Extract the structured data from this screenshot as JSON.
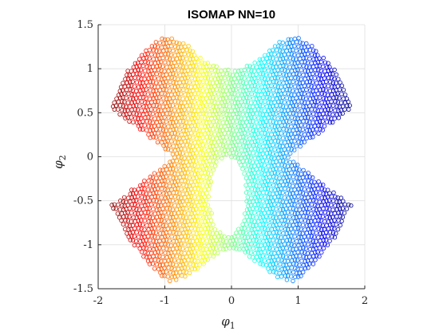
{
  "chart_data": {
    "type": "scatter",
    "title": "ISOMAP NN=10",
    "xlabel": "φ",
    "xlabel_sub": "1",
    "ylabel": "φ",
    "ylabel_sub": "2",
    "xlim": [
      -2,
      2
    ],
    "ylim": [
      -1.5,
      1.5
    ],
    "xticks": [
      -2,
      -1,
      0,
      1,
      2
    ],
    "yticks": [
      -1.5,
      -1,
      -0.5,
      0,
      0.5,
      1,
      1.5
    ],
    "xtick_labels": [
      "-2",
      "-1",
      "0",
      "1",
      "2"
    ],
    "ytick_labels": [
      "-1.5",
      "-1",
      "-0.5",
      "0",
      "0.5",
      "1",
      "1.5"
    ],
    "grid": true,
    "marker": "open-circle",
    "colormap": "jet",
    "color_by": "x",
    "shape": {
      "upper_boundary": [
        [
          -1.8,
          0.6
        ],
        [
          -1.6,
          0.95
        ],
        [
          -1.2,
          1.28
        ],
        [
          -0.95,
          1.38
        ],
        [
          -0.7,
          1.3
        ],
        [
          -0.45,
          1.12
        ],
        [
          -0.2,
          1.02
        ],
        [
          0,
          0.98
        ],
        [
          0.2,
          1.02
        ],
        [
          0.45,
          1.12
        ],
        [
          0.7,
          1.3
        ],
        [
          0.95,
          1.38
        ],
        [
          1.2,
          1.28
        ],
        [
          1.6,
          0.95
        ],
        [
          1.8,
          0.55
        ]
      ],
      "lower_boundary": [
        [
          -1.8,
          -0.55
        ],
        [
          -1.6,
          -0.88
        ],
        [
          -1.2,
          -1.25
        ],
        [
          -0.95,
          -1.42
        ],
        [
          -0.7,
          -1.38
        ],
        [
          -0.45,
          -1.25
        ],
        [
          -0.2,
          -1.1
        ],
        [
          0,
          -1.05
        ],
        [
          0.2,
          -1.1
        ],
        [
          0.45,
          -1.25
        ],
        [
          0.7,
          -1.38
        ],
        [
          0.95,
          -1.42
        ],
        [
          1.2,
          -1.25
        ],
        [
          1.6,
          -0.88
        ],
        [
          1.8,
          -0.55
        ]
      ],
      "left_notch_depth_x": -0.85,
      "right_notch_depth_x": 0.85,
      "hole": {
        "center": [
          -0.05,
          -0.45
        ],
        "rx": 0.27,
        "ry": 0.45
      }
    },
    "colors": {
      "axis": "#262626",
      "grid": "#dfdfdf",
      "background": "#ffffff"
    }
  }
}
